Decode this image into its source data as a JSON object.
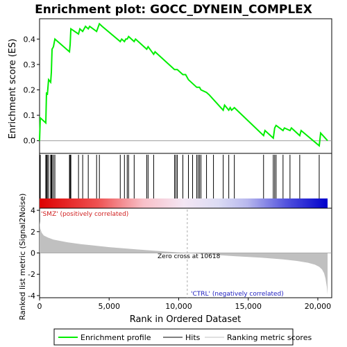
{
  "chart_data": {
    "type": "line",
    "title": "Enrichment plot: GOCC_DYNEIN_COMPLEX",
    "top_panel": {
      "ylabel": "Enrichment score (ES)",
      "ylim": [
        -0.05,
        0.48
      ],
      "yticks": [
        "0.0",
        "0.1",
        "0.2",
        "0.3",
        "0.4"
      ],
      "ytick_values": [
        0.0,
        0.1,
        0.2,
        0.3,
        0.4
      ],
      "series": [
        {
          "name": "Enrichment profile",
          "color": "#00ee00",
          "x": [
            0,
            50,
            450,
            500,
            560,
            650,
            800,
            850,
            900,
            1000,
            1100,
            2150,
            2200,
            2250,
            2800,
            2900,
            3100,
            3300,
            3500,
            3600,
            4100,
            4300,
            4500,
            5800,
            5900,
            6100,
            6200,
            6300,
            6400,
            6800,
            6900,
            7700,
            7800,
            8200,
            8300,
            9700,
            9900,
            10300,
            10500,
            10700,
            11300,
            11500,
            11600,
            12000,
            12200,
            13200,
            13300,
            13600,
            13700,
            13800,
            14000,
            16100,
            16200,
            16800,
            16900,
            17000,
            17500,
            17600,
            18000,
            18100,
            18700,
            18800,
            20100,
            20200,
            20700
          ],
          "y": [
            0.0,
            0.09,
            0.07,
            0.19,
            0.18,
            0.24,
            0.23,
            0.27,
            0.36,
            0.37,
            0.4,
            0.35,
            0.38,
            0.44,
            0.42,
            0.44,
            0.43,
            0.45,
            0.44,
            0.45,
            0.43,
            0.46,
            0.45,
            0.39,
            0.4,
            0.39,
            0.4,
            0.4,
            0.41,
            0.39,
            0.4,
            0.36,
            0.37,
            0.34,
            0.35,
            0.28,
            0.28,
            0.26,
            0.26,
            0.24,
            0.21,
            0.21,
            0.2,
            0.19,
            0.18,
            0.12,
            0.14,
            0.12,
            0.13,
            0.12,
            0.13,
            0.02,
            0.04,
            0.01,
            0.05,
            0.06,
            0.04,
            0.05,
            0.04,
            0.05,
            0.02,
            0.04,
            -0.02,
            0.03,
            0.0
          ]
        }
      ]
    },
    "hits": {
      "name": "Hits",
      "positions": [
        50,
        450,
        500,
        560,
        650,
        800,
        850,
        900,
        1000,
        1100,
        2150,
        2200,
        2250,
        2800,
        3100,
        3500,
        4100,
        4300,
        5800,
        6100,
        6300,
        6400,
        6800,
        7700,
        7800,
        8200,
        9700,
        9800,
        9900,
        10300,
        10700,
        11000,
        11300,
        11400,
        11500,
        11600,
        12000,
        12500,
        13200,
        13600,
        14000,
        16100,
        16800,
        16900,
        17000,
        17500,
        18000,
        18700,
        20100
      ]
    },
    "heatmap_bar": {
      "left_label": "'SMZ' (positively correlated)",
      "right_label": "'CTRL' (negatively correlated)",
      "positive_color": "#dd0000",
      "negative_color": "#0000dd"
    },
    "bottom_panel": {
      "ylabel": "Ranked list metric (Signal2Noise)",
      "xlabel": "Rank in Ordered Dataset",
      "ylim": [
        -4.2,
        4.2
      ],
      "yticks": [
        "-4",
        "-2",
        "0",
        "2",
        "4"
      ],
      "ytick_values": [
        -4,
        -2,
        0,
        2,
        4
      ],
      "xlim": [
        0,
        21000
      ],
      "xticks": [
        "0",
        "5,000",
        "10,000",
        "15,000",
        "20,000"
      ],
      "xtick_values": [
        0,
        5000,
        10000,
        15000,
        20000
      ],
      "zero_cross_label": "Zero cross at 10618",
      "zero_cross": 10618,
      "n_genes": 20700,
      "fill_color": "#c0c0c0",
      "metric_samples": {
        "x": [
          0,
          50,
          150,
          300,
          600,
          1000,
          2000,
          3000,
          5000,
          7000,
          9000,
          10618,
          12000,
          14000,
          16000,
          17500,
          18500,
          19300,
          19800,
          20100,
          20300,
          20450,
          20550,
          20650,
          20700
        ],
        "y": [
          3.0,
          2.3,
          1.9,
          1.65,
          1.45,
          1.25,
          1.0,
          0.82,
          0.55,
          0.33,
          0.14,
          0.0,
          -0.13,
          -0.3,
          -0.45,
          -0.6,
          -0.75,
          -0.92,
          -1.1,
          -1.3,
          -1.55,
          -1.9,
          -2.4,
          -3.2,
          -3.9
        ]
      }
    },
    "legend": {
      "items": [
        {
          "label": "Enrichment profile",
          "color": "#00ee00"
        },
        {
          "label": "Hits",
          "color": "#000000"
        },
        {
          "label": "Ranking metric scores",
          "color": "#c0c0c0"
        }
      ]
    }
  }
}
